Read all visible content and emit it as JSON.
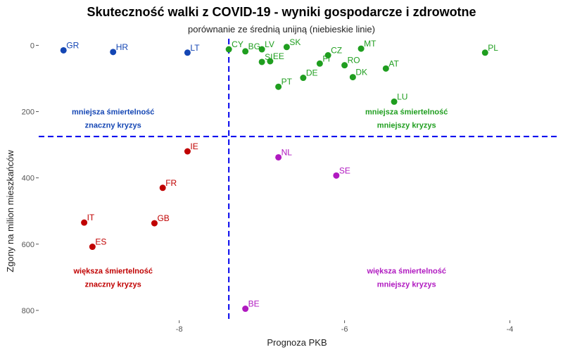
{
  "chart_data": {
    "type": "scatter",
    "title": "Skuteczność walki z COVID-19 - wyniki gospodarcze i zdrowotne",
    "subtitle": "porównanie ze średnią unijną (niebieskie linie)",
    "xlabel": "Prognoza PKB",
    "ylabel": "Zgony na milion mieszkańców",
    "xlim": [
      -9.7,
      -3.4
    ],
    "ylim": [
      -20,
      830
    ],
    "y_reversed": true,
    "x_ticks": [
      -8,
      -6,
      -4
    ],
    "y_ticks": [
      0,
      200,
      400,
      600,
      800
    ],
    "reference_lines": {
      "x": -7.4,
      "y": 275,
      "color": "#0000ee",
      "style": "dashed"
    },
    "grid": false,
    "colors": {
      "mniejsza_znaczny": "#1446b4",
      "mniejsza_mniejszy": "#1f9e1f",
      "wieksza_znaczny": "#c00000",
      "wieksza_mniejszy": "#b019c0"
    },
    "points": [
      {
        "label": "GR",
        "x": -9.4,
        "y": 15,
        "group": "mniejsza_znaczny"
      },
      {
        "label": "HR",
        "x": -8.8,
        "y": 20,
        "group": "mniejsza_znaczny"
      },
      {
        "label": "LT",
        "x": -7.9,
        "y": 22,
        "group": "mniejsza_znaczny"
      },
      {
        "label": "CY",
        "x": -7.4,
        "y": 12,
        "group": "mniejsza_mniejszy"
      },
      {
        "label": "BG",
        "x": -7.2,
        "y": 18,
        "group": "mniejsza_mniejszy"
      },
      {
        "label": "LV",
        "x": -7.0,
        "y": 12,
        "group": "mniejsza_mniejszy"
      },
      {
        "label": "SK",
        "x": -6.7,
        "y": 5,
        "group": "mniejsza_mniejszy"
      },
      {
        "label": "SI",
        "x": -7.0,
        "y": 50,
        "group": "mniejsza_mniejszy"
      },
      {
        "label": "EE",
        "x": -6.9,
        "y": 48,
        "group": "mniejsza_mniejszy"
      },
      {
        "label": "CZ",
        "x": -6.2,
        "y": 30,
        "group": "mniejsza_mniejszy"
      },
      {
        "label": "MT",
        "x": -5.8,
        "y": 10,
        "group": "mniejsza_mniejszy"
      },
      {
        "label": "FI",
        "x": -6.3,
        "y": 55,
        "group": "mniejsza_mniejszy"
      },
      {
        "label": "RO",
        "x": -6.0,
        "y": 60,
        "group": "mniejsza_mniejszy"
      },
      {
        "label": "DE",
        "x": -6.5,
        "y": 98,
        "group": "mniejsza_mniejszy"
      },
      {
        "label": "DK",
        "x": -5.9,
        "y": 96,
        "group": "mniejsza_mniejszy"
      },
      {
        "label": "AT",
        "x": -5.5,
        "y": 70,
        "group": "mniejsza_mniejszy"
      },
      {
        "label": "PT",
        "x": -6.8,
        "y": 125,
        "group": "mniejsza_mniejszy"
      },
      {
        "label": "PL",
        "x": -4.3,
        "y": 22,
        "group": "mniejsza_mniejszy"
      },
      {
        "label": "LU",
        "x": -5.4,
        "y": 170,
        "group": "mniejsza_mniejszy"
      },
      {
        "label": "IE",
        "x": -7.9,
        "y": 320,
        "group": "wieksza_znaczny"
      },
      {
        "label": "FR",
        "x": -8.2,
        "y": 430,
        "group": "wieksza_znaczny"
      },
      {
        "label": "GB",
        "x": -8.3,
        "y": 537,
        "group": "wieksza_znaczny"
      },
      {
        "label": "IT",
        "x": -9.15,
        "y": 535,
        "group": "wieksza_znaczny"
      },
      {
        "label": "ES",
        "x": -9.05,
        "y": 608,
        "group": "wieksza_znaczny"
      },
      {
        "label": "NL",
        "x": -6.8,
        "y": 338,
        "group": "wieksza_mniejszy"
      },
      {
        "label": "SE",
        "x": -6.1,
        "y": 393,
        "group": "wieksza_mniejszy"
      },
      {
        "label": "BE",
        "x": -7.2,
        "y": 795,
        "group": "wieksza_mniejszy"
      }
    ],
    "quadrant_labels": [
      {
        "line1": "mniejsza śmiertelność",
        "line2": "znaczny kryzys",
        "group": "mniejsza_znaczny",
        "x": -8.8,
        "y": 200
      },
      {
        "line1": "mniejsza śmiertelność",
        "line2": "mniejszy kryzys",
        "group": "mniejsza_mniejszy",
        "x": -5.25,
        "y": 200
      },
      {
        "line1": "większa śmiertelność",
        "line2": "znaczny kryzys",
        "group": "wieksza_znaczny",
        "x": -8.8,
        "y": 680
      },
      {
        "line1": "większa śmiertelność",
        "line2": "mniejszy kryzys",
        "group": "wieksza_mniejszy",
        "x": -5.25,
        "y": 680
      }
    ]
  }
}
